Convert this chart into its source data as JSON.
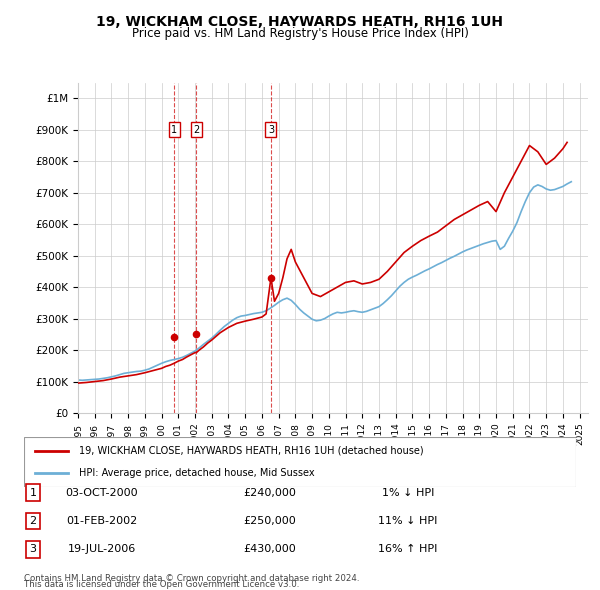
{
  "title": "19, WICKHAM CLOSE, HAYWARDS HEATH, RH16 1UH",
  "subtitle": "Price paid vs. HM Land Registry's House Price Index (HPI)",
  "legend_line1": "19, WICKHAM CLOSE, HAYWARDS HEATH, RH16 1UH (detached house)",
  "legend_line2": "HPI: Average price, detached house, Mid Sussex",
  "footer1": "Contains HM Land Registry data © Crown copyright and database right 2024.",
  "footer2": "This data is licensed under the Open Government Licence v3.0.",
  "transactions": [
    {
      "num": 1,
      "date": "03-OCT-2000",
      "price": 240000,
      "change": "1% ↓ HPI",
      "x_year": 2000.75
    },
    {
      "num": 2,
      "date": "01-FEB-2002",
      "price": 250000,
      "change": "11% ↓ HPI",
      "x_year": 2002.08
    },
    {
      "num": 3,
      "date": "19-JUL-2006",
      "price": 430000,
      "change": "16% ↑ HPI",
      "x_year": 2006.54
    }
  ],
  "hpi_color": "#6dafd6",
  "price_color": "#cc0000",
  "vline_color": "#cc0000",
  "background_color": "#ffffff",
  "grid_color": "#cccccc",
  "ylim": [
    0,
    1050000
  ],
  "xlim_start": 1995,
  "xlim_end": 2025.5,
  "yticks": [
    0,
    100000,
    200000,
    300000,
    400000,
    500000,
    600000,
    700000,
    800000,
    900000,
    1000000
  ],
  "ytick_labels": [
    "£0",
    "£100K",
    "£200K",
    "£300K",
    "£400K",
    "£500K",
    "£600K",
    "£700K",
    "£800K",
    "£900K",
    "£1M"
  ],
  "hpi_data": {
    "years": [
      1995,
      1995.25,
      1995.5,
      1995.75,
      1996,
      1996.25,
      1996.5,
      1996.75,
      1997,
      1997.25,
      1997.5,
      1997.75,
      1998,
      1998.25,
      1998.5,
      1998.75,
      1999,
      1999.25,
      1999.5,
      1999.75,
      2000,
      2000.25,
      2000.5,
      2000.75,
      2001,
      2001.25,
      2001.5,
      2001.75,
      2002,
      2002.25,
      2002.5,
      2002.75,
      2003,
      2003.25,
      2003.5,
      2003.75,
      2004,
      2004.25,
      2004.5,
      2004.75,
      2005,
      2005.25,
      2005.5,
      2005.75,
      2006,
      2006.25,
      2006.5,
      2006.75,
      2007,
      2007.25,
      2007.5,
      2007.75,
      2008,
      2008.25,
      2008.5,
      2008.75,
      2009,
      2009.25,
      2009.5,
      2009.75,
      2010,
      2010.25,
      2010.5,
      2010.75,
      2011,
      2011.25,
      2011.5,
      2011.75,
      2012,
      2012.25,
      2012.5,
      2012.75,
      2013,
      2013.25,
      2013.5,
      2013.75,
      2014,
      2014.25,
      2014.5,
      2014.75,
      2015,
      2015.25,
      2015.5,
      2015.75,
      2016,
      2016.25,
      2016.5,
      2016.75,
      2017,
      2017.25,
      2017.5,
      2017.75,
      2018,
      2018.25,
      2018.5,
      2018.75,
      2019,
      2019.25,
      2019.5,
      2019.75,
      2020,
      2020.25,
      2020.5,
      2020.75,
      2021,
      2021.25,
      2021.5,
      2021.75,
      2022,
      2022.25,
      2022.5,
      2022.75,
      2023,
      2023.25,
      2023.5,
      2023.75,
      2024,
      2024.25,
      2024.5
    ],
    "values": [
      105000,
      104000,
      105000,
      106000,
      107000,
      108000,
      110000,
      112000,
      115000,
      118000,
      122000,
      126000,
      128000,
      130000,
      132000,
      133000,
      136000,
      140000,
      146000,
      152000,
      158000,
      163000,
      167000,
      170000,
      173000,
      177000,
      183000,
      190000,
      197000,
      207000,
      218000,
      228000,
      238000,
      250000,
      263000,
      275000,
      285000,
      295000,
      303000,
      308000,
      310000,
      313000,
      316000,
      318000,
      320000,
      325000,
      333000,
      342000,
      352000,
      360000,
      365000,
      358000,
      345000,
      330000,
      318000,
      308000,
      298000,
      293000,
      295000,
      300000,
      308000,
      315000,
      320000,
      318000,
      320000,
      323000,
      325000,
      322000,
      320000,
      323000,
      328000,
      333000,
      338000,
      348000,
      360000,
      373000,
      388000,
      403000,
      415000,
      425000,
      432000,
      438000,
      445000,
      452000,
      458000,
      465000,
      472000,
      478000,
      485000,
      492000,
      498000,
      505000,
      512000,
      518000,
      523000,
      528000,
      533000,
      538000,
      542000,
      546000,
      548000,
      520000,
      530000,
      555000,
      578000,
      605000,
      640000,
      672000,
      700000,
      718000,
      725000,
      720000,
      712000,
      708000,
      710000,
      715000,
      720000,
      728000,
      735000
    ]
  },
  "price_data": {
    "years": [
      1995,
      1995.5,
      1996,
      1996.5,
      1997,
      1997.5,
      1998,
      1998.5,
      1999,
      1999.5,
      2000,
      2000.25,
      2000.5,
      2000.75,
      2001,
      2001.25,
      2001.5,
      2001.75,
      2002,
      2002.08,
      2002.25,
      2002.5,
      2002.75,
      2003,
      2003.5,
      2004,
      2004.5,
      2005,
      2005.5,
      2006,
      2006.25,
      2006.54,
      2006.75,
      2007,
      2007.25,
      2007.5,
      2007.75,
      2008,
      2008.5,
      2009,
      2009.5,
      2010,
      2010.5,
      2011,
      2011.5,
      2012,
      2012.5,
      2013,
      2013.5,
      2014,
      2014.5,
      2015,
      2015.5,
      2016,
      2016.5,
      2017,
      2017.5,
      2018,
      2018.5,
      2019,
      2019.5,
      2020,
      2020.5,
      2021,
      2021.5,
      2022,
      2022.5,
      2023,
      2023.5,
      2024,
      2024.25
    ],
    "values": [
      95000,
      97000,
      100000,
      103000,
      108000,
      114000,
      118000,
      122000,
      128000,
      135000,
      142000,
      148000,
      152000,
      158000,
      165000,
      170000,
      178000,
      185000,
      192000,
      192000,
      200000,
      210000,
      222000,
      232000,
      255000,
      272000,
      285000,
      292000,
      298000,
      305000,
      315000,
      430000,
      355000,
      380000,
      430000,
      490000,
      520000,
      480000,
      430000,
      380000,
      370000,
      385000,
      400000,
      415000,
      420000,
      410000,
      415000,
      425000,
      450000,
      480000,
      510000,
      530000,
      548000,
      562000,
      575000,
      595000,
      615000,
      630000,
      645000,
      660000,
      672000,
      640000,
      700000,
      750000,
      800000,
      850000,
      830000,
      790000,
      810000,
      840000,
      860000
    ]
  }
}
